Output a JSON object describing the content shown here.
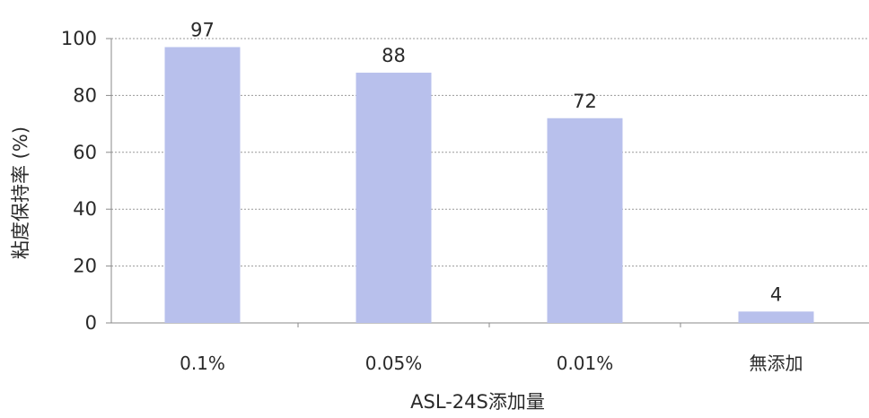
{
  "chart_data": {
    "type": "bar",
    "categories": [
      "0.1%",
      "0.05%",
      "0.01%",
      "無添加"
    ],
    "values": [
      97,
      88,
      72,
      4
    ],
    "data_labels": [
      "97",
      "88",
      "72",
      "4"
    ],
    "title": "",
    "xlabel": "ASL-24S添加量",
    "ylabel": "粘度保持率 (%)",
    "ylim": [
      0,
      100
    ],
    "yticks": [
      "0",
      "20",
      "40",
      "60",
      "80",
      "100"
    ],
    "grid": true,
    "legend": "none",
    "bar_color": "#b8c0ec",
    "grid_color": "#9a9a9a",
    "axis_color": "#8a8a8a"
  }
}
